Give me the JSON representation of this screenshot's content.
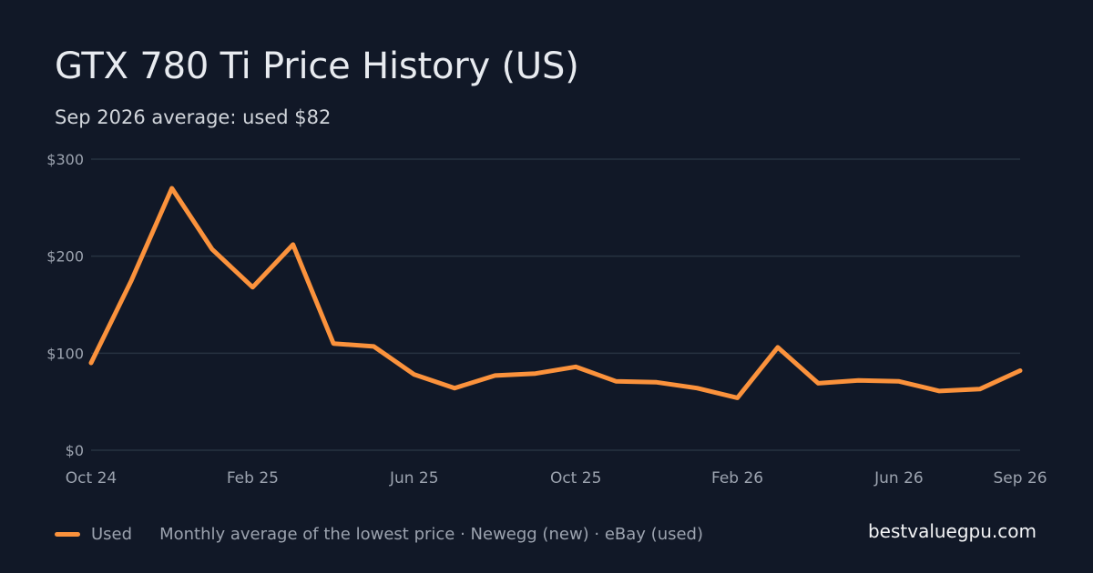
{
  "header": {
    "title": "GTX 780 Ti Price History (US)",
    "subtitle": "Sep 2026 average: used $82"
  },
  "footer": {
    "legend_used": "Used",
    "note": "Monthly average of the lowest price · Newegg (new) · eBay (used)",
    "site": "bestvaluegpu.com"
  },
  "colors": {
    "background": "#111827",
    "used_line": "#fb923c",
    "grid": "#273241",
    "axis_text": "#9ca3af"
  },
  "chart_data": {
    "type": "line",
    "title": "GTX 780 Ti Price History (US)",
    "subtitle": "Sep 2026 average: used $82",
    "x": [
      "Oct 24",
      "Nov 24",
      "Dec 24",
      "Jan 25",
      "Feb 25",
      "Mar 25",
      "Apr 25",
      "May 25",
      "Jun 25",
      "Jul 25",
      "Aug 25",
      "Sep 25",
      "Oct 25",
      "Nov 25",
      "Dec 25",
      "Jan 26",
      "Feb 26",
      "Mar 26",
      "Apr 26",
      "May 26",
      "Jun 26",
      "Jul 26",
      "Aug 26",
      "Sep 26"
    ],
    "x_tick_labels": [
      "Oct 24",
      "Feb 25",
      "Jun 25",
      "Oct 25",
      "Feb 26",
      "Jun 26",
      "Sep 26"
    ],
    "series": [
      {
        "name": "Used",
        "values": [
          90,
          175,
          270,
          207,
          168,
          212,
          110,
          107,
          78,
          64,
          77,
          79,
          86,
          71,
          70,
          64,
          54,
          106,
          69,
          72,
          71,
          61,
          63,
          82
        ]
      }
    ],
    "y_ticks": [
      0,
      100,
      200,
      300
    ],
    "y_tick_labels": [
      "$0",
      "$100",
      "$200",
      "$300"
    ],
    "ylim": [
      0,
      300
    ],
    "xlabel": "",
    "ylabel": "",
    "grid": true,
    "legend_position": "bottom-left"
  }
}
